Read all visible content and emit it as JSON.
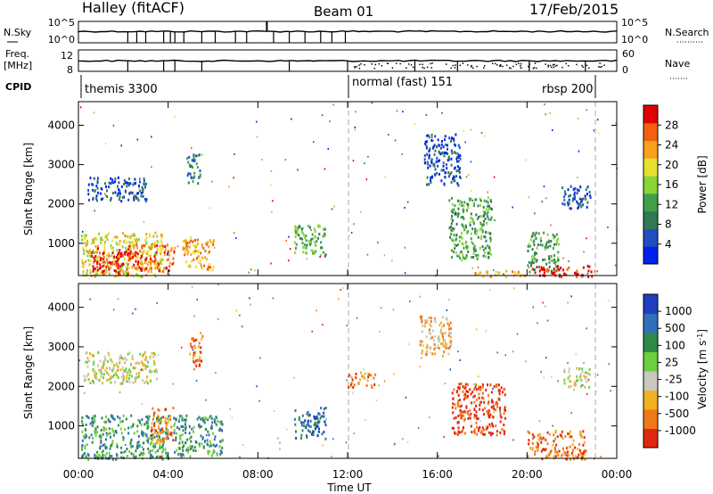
{
  "header": {
    "station": "Halley (fitACF)",
    "beam": "Beam 01",
    "date": "17/Feb/2015"
  },
  "noise_panel": {
    "left_label": "N.Sky",
    "left_ticks": [
      "10^5",
      "10^0"
    ],
    "right_label": "N.Search",
    "right_ticks": [
      "10^5",
      "10^0"
    ]
  },
  "freq_panel": {
    "left_label_1": "Freq.",
    "left_label_2": "[MHz]",
    "left_ticks": [
      "12",
      "8"
    ],
    "right_label": "Nave",
    "right_ticks": [
      "60",
      "0"
    ]
  },
  "cpid": {
    "label": "CPID",
    "modes": [
      "themis 3300",
      "normal (fast) 151",
      "rbsp 200"
    ]
  },
  "colors": {
    "power_scale": [
      "#0022ee",
      "#1f4fbf",
      "#2f7a55",
      "#3fa048",
      "#8ad43a",
      "#e8e030",
      "#f7a21a",
      "#f26010",
      "#e00000"
    ],
    "velocity_scale": [
      "#1f3fbf",
      "#2f70b8",
      "#2f8a4a",
      "#6ccf3c",
      "#c8c8c0",
      "#f0b020",
      "#f07818",
      "#e02810"
    ]
  },
  "chart_data": [
    {
      "type": "heatmap",
      "title": "",
      "xlabel": "Time UT",
      "ylabel": "Slant Range [km]",
      "x_ticks": [
        "00:00",
        "04:00",
        "08:00",
        "12:00",
        "16:00",
        "20:00",
        "00:00"
      ],
      "y_ticks": [
        "1000",
        "2000",
        "3000",
        "4000"
      ],
      "xlim_hours": [
        0,
        24
      ],
      "ylim_km": [
        180,
        4600
      ],
      "colorbar_label": "Power [dB]",
      "colorbar_ticks": [
        "4",
        "8",
        "12",
        "16",
        "20",
        "24",
        "28"
      ],
      "regions": [
        {
          "t0": 0.1,
          "t1": 3.8,
          "r0": 180,
          "r1": 1300,
          "level": 5
        },
        {
          "t0": 0.5,
          "t1": 2.2,
          "r0": 250,
          "r1": 900,
          "level": 8
        },
        {
          "t0": 2.2,
          "t1": 4.3,
          "r0": 300,
          "r1": 1000,
          "level": 7
        },
        {
          "t0": 4.6,
          "t1": 6.0,
          "r0": 350,
          "r1": 1200,
          "level": 6
        },
        {
          "t0": 0.4,
          "t1": 3.0,
          "r0": 2100,
          "r1": 2700,
          "level": 1
        },
        {
          "t0": 4.8,
          "t1": 5.4,
          "r0": 2500,
          "r1": 3300,
          "level": 2
        },
        {
          "t0": 9.6,
          "t1": 11.0,
          "r0": 700,
          "r1": 1500,
          "level": 3
        },
        {
          "t0": 15.4,
          "t1": 17.0,
          "r0": 2500,
          "r1": 3800,
          "level": 1
        },
        {
          "t0": 16.5,
          "t1": 18.4,
          "r0": 600,
          "r1": 2200,
          "level": 3
        },
        {
          "t0": 20.0,
          "t1": 21.4,
          "r0": 300,
          "r1": 1300,
          "level": 3
        },
        {
          "t0": 20.2,
          "t1": 23.0,
          "r0": 180,
          "r1": 450,
          "level": 8
        },
        {
          "t0": 17.5,
          "t1": 20.0,
          "r0": 180,
          "r1": 330,
          "level": 6
        },
        {
          "t0": 21.5,
          "t1": 22.8,
          "r0": 1900,
          "r1": 2500,
          "level": 1
        }
      ]
    },
    {
      "type": "heatmap",
      "title": "",
      "xlabel": "Time UT",
      "ylabel": "Slant Range [km]",
      "x_ticks": [
        "00:00",
        "04:00",
        "08:00",
        "12:00",
        "16:00",
        "20:00",
        "00:00"
      ],
      "y_ticks": [
        "1000",
        "2000",
        "3000",
        "4000"
      ],
      "xlim_hours": [
        0,
        24
      ],
      "ylim_km": [
        180,
        4600
      ],
      "colorbar_label": "Velocity [m s^-1]",
      "colorbar_ticks": [
        "1000",
        "500",
        "100",
        "25",
        "-25",
        "-100",
        "-500",
        "-1000"
      ],
      "regions": [
        {
          "t0": 0.1,
          "t1": 4.0,
          "r0": 180,
          "r1": 1300,
          "level": 2
        },
        {
          "t0": 4.2,
          "t1": 6.4,
          "r0": 250,
          "r1": 1300,
          "level": 2
        },
        {
          "t0": 3.2,
          "t1": 4.2,
          "r0": 600,
          "r1": 1500,
          "level": 6
        },
        {
          "t0": 0.2,
          "t1": 3.5,
          "r0": 2100,
          "r1": 2900,
          "level": 4
        },
        {
          "t0": 4.9,
          "t1": 5.5,
          "r0": 2500,
          "r1": 3400,
          "level": 6
        },
        {
          "t0": 9.6,
          "t1": 11.0,
          "r0": 700,
          "r1": 1500,
          "level": 1
        },
        {
          "t0": 15.2,
          "t1": 16.6,
          "r0": 2800,
          "r1": 3800,
          "level": 5
        },
        {
          "t0": 16.6,
          "t1": 19.0,
          "r0": 800,
          "r1": 2100,
          "level": 7
        },
        {
          "t0": 20.0,
          "t1": 22.6,
          "r0": 180,
          "r1": 900,
          "level": 6
        },
        {
          "t0": 21.6,
          "t1": 22.8,
          "r0": 2000,
          "r1": 2500,
          "level": 4
        },
        {
          "t0": 12.0,
          "t1": 13.2,
          "r0": 2000,
          "r1": 2400,
          "level": 6
        }
      ]
    }
  ]
}
